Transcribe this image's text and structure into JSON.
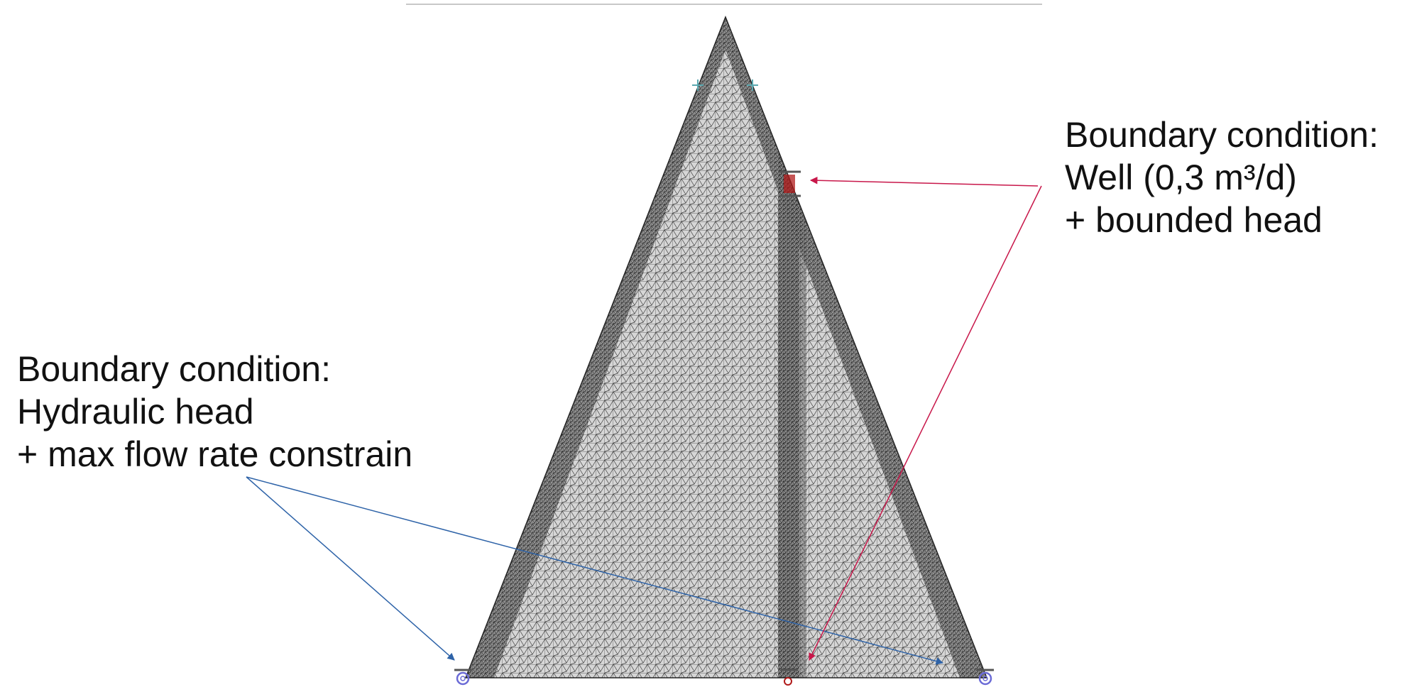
{
  "annotations": {
    "left": {
      "lines": [
        "Boundary condition:",
        "Hydraulic head",
        "+ max flow rate constrain"
      ],
      "arrow_color": "#2e63a8"
    },
    "right": {
      "lines": [
        "Boundary condition:",
        "Well (0,3 m³/d)",
        "+ bounded head"
      ],
      "arrow_color": "#c8174a"
    }
  },
  "mesh": {
    "shape": "triangle",
    "element_type": "triangular finite element mesh",
    "fill_color": "#bdbdbd",
    "edge_color": "#1a1a1a"
  },
  "markers": {
    "hydraulic_head_color": "#6b6bd6",
    "well_color": "#b11b1b",
    "observation_color": "#5aa8b0"
  }
}
